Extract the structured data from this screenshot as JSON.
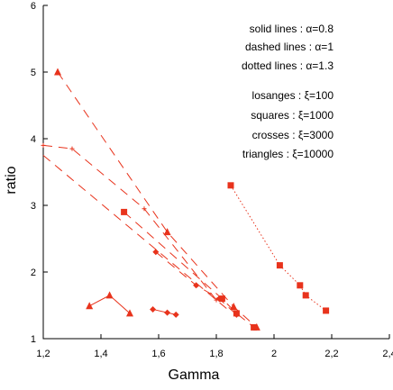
{
  "chart_data": {
    "type": "scatter",
    "xlabel": "Gamma",
    "ylabel": "ratio",
    "xlim": [
      1.2,
      2.4
    ],
    "ylim": [
      1,
      6
    ],
    "x_ticks": [
      "1,2",
      "1,4",
      "1,6",
      "1,8",
      "2",
      "2,2",
      "2,4"
    ],
    "y_ticks": [
      "1",
      "2",
      "3",
      "4",
      "5",
      "6"
    ],
    "grid": false,
    "color": "#e8331c",
    "annotations": [
      "solid lines : α=0.8",
      "dashed lines :  α=1",
      "dotted lines : α=1.3",
      "losanges : ξ=100",
      "squares : ξ=1000",
      "crosses : ξ=3000",
      "triangles : ξ=10000"
    ],
    "series": [
      {
        "line": "solid",
        "marker": "triangle",
        "points": [
          [
            1.36,
            1.49
          ],
          [
            1.43,
            1.65
          ],
          [
            1.5,
            1.38
          ]
        ]
      },
      {
        "line": "solid",
        "marker": "diamond",
        "points": [
          [
            1.58,
            1.44
          ],
          [
            1.63,
            1.39
          ],
          [
            1.66,
            1.36
          ]
        ]
      },
      {
        "line": "dashed",
        "marker": "triangle",
        "points": [
          [
            1.25,
            5.0
          ],
          [
            1.63,
            2.6
          ],
          [
            1.86,
            1.48
          ],
          [
            1.94,
            1.17
          ]
        ]
      },
      {
        "line": "dashed",
        "marker": "square",
        "points": [
          [
            1.48,
            2.9
          ],
          [
            1.82,
            1.6
          ],
          [
            1.87,
            1.38
          ],
          [
            1.93,
            1.17
          ]
        ]
      },
      {
        "line": "dashed",
        "marker": "diamond",
        "points": [
          [
            1.59,
            2.3
          ],
          [
            1.73,
            1.8
          ],
          [
            1.81,
            1.6
          ],
          [
            1.87,
            1.36
          ]
        ]
      },
      {
        "line": "dashed",
        "marker": "cross",
        "points": [
          [
            1.2,
            3.9
          ],
          [
            1.3,
            3.85
          ],
          [
            1.55,
            2.95
          ],
          [
            1.8,
            1.58
          ]
        ]
      },
      {
        "line": "dashed",
        "marker": "none",
        "points": [
          [
            1.2,
            3.75
          ],
          [
            1.85,
            1.4
          ]
        ]
      },
      {
        "line": "dotted",
        "marker": "square",
        "points": [
          [
            1.85,
            3.3
          ],
          [
            2.02,
            2.1
          ],
          [
            2.09,
            1.8
          ],
          [
            2.11,
            1.65
          ],
          [
            2.18,
            1.42
          ]
        ]
      }
    ]
  }
}
